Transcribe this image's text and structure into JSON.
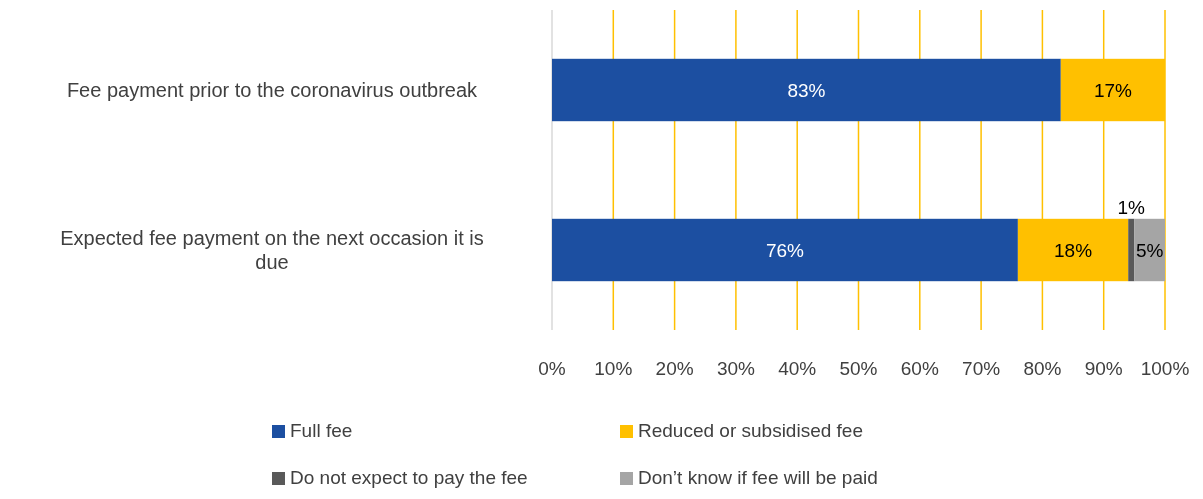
{
  "chart_data": {
    "type": "bar",
    "orientation": "horizontal",
    "stacked": true,
    "categories": [
      "Fee payment prior to the coronavirus outbreak",
      "Expected fee payment on the next occasion it is due"
    ],
    "series": [
      {
        "name": "Full fee",
        "color": "#1c4fa1",
        "values": [
          83,
          76
        ],
        "value_labels": [
          "83%",
          "76%"
        ]
      },
      {
        "name": "Reduced or subsidised fee",
        "color": "#ffc000",
        "values": [
          17,
          18
        ],
        "value_labels": [
          "17%",
          "18%"
        ]
      },
      {
        "name": "Do not expect to pay the fee",
        "color": "#595959",
        "values": [
          null,
          1
        ],
        "value_labels": [
          null,
          "1%"
        ]
      },
      {
        "name": "Don’t know if fee will be paid",
        "color": "#a5a5a5",
        "values": [
          null,
          5
        ],
        "value_labels": [
          null,
          "5%"
        ]
      }
    ],
    "xlim": [
      0,
      100
    ],
    "xticks": [
      {
        "value": 0,
        "label": "0%"
      },
      {
        "value": 10,
        "label": "10%"
      },
      {
        "value": 20,
        "label": "20%"
      },
      {
        "value": 30,
        "label": "30%"
      },
      {
        "value": 40,
        "label": "40%"
      },
      {
        "value": 50,
        "label": "50%"
      },
      {
        "value": 60,
        "label": "60%"
      },
      {
        "value": 70,
        "label": "70%"
      },
      {
        "value": 80,
        "label": "80%"
      },
      {
        "value": 90,
        "label": "90%"
      },
      {
        "value": 100,
        "label": "100%"
      }
    ],
    "grid": "x",
    "legend": "bottom"
  }
}
